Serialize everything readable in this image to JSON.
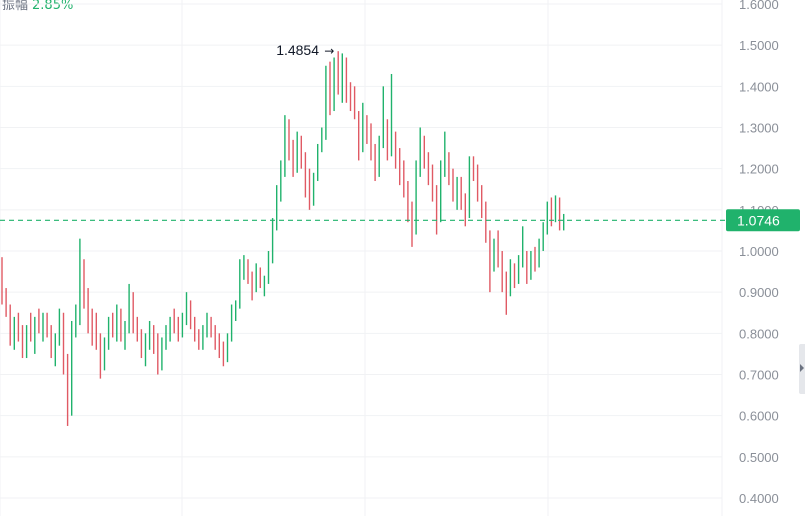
{
  "header": {
    "amplitude_label": "振幅",
    "amplitude_value": "2.85%"
  },
  "colors": {
    "up": "#20b26c",
    "down": "#e05a64",
    "grid": "#f1f2f4",
    "axis_text": "#8a8f98",
    "current_badge": "#20b26c"
  },
  "chart_data": {
    "type": "candlestick",
    "title": "",
    "xlabel": "",
    "ylabel": "",
    "ylim": [
      0.38,
      1.6
    ],
    "y_ticks": [
      "1.6000",
      "1.5000",
      "1.4000",
      "1.3000",
      "1.2000",
      "1.1000",
      "1.0000",
      "0.9000",
      "0.8000",
      "0.7000",
      "0.6000",
      "0.5000",
      "0.4000"
    ],
    "grid": true,
    "current_price": {
      "value": 1.0746,
      "label": "1.0746"
    },
    "high_annotation": {
      "value": 1.4854,
      "label": "1.4854"
    },
    "candles": [
      {
        "o": 0.91,
        "h": 0.985,
        "l": 0.87,
        "c": 0.88
      },
      {
        "o": 0.88,
        "h": 0.91,
        "l": 0.84,
        "c": 0.85
      },
      {
        "o": 0.85,
        "h": 0.87,
        "l": 0.77,
        "c": 0.79
      },
      {
        "o": 0.79,
        "h": 0.84,
        "l": 0.76,
        "c": 0.82
      },
      {
        "o": 0.82,
        "h": 0.85,
        "l": 0.78,
        "c": 0.8
      },
      {
        "o": 0.8,
        "h": 0.82,
        "l": 0.74,
        "c": 0.76
      },
      {
        "o": 0.76,
        "h": 0.82,
        "l": 0.74,
        "c": 0.81
      },
      {
        "o": 0.81,
        "h": 0.85,
        "l": 0.78,
        "c": 0.79
      },
      {
        "o": 0.79,
        "h": 0.84,
        "l": 0.75,
        "c": 0.83
      },
      {
        "o": 0.83,
        "h": 0.86,
        "l": 0.8,
        "c": 0.81
      },
      {
        "o": 0.81,
        "h": 0.85,
        "l": 0.78,
        "c": 0.84
      },
      {
        "o": 0.84,
        "h": 0.85,
        "l": 0.79,
        "c": 0.8
      },
      {
        "o": 0.8,
        "h": 0.82,
        "l": 0.74,
        "c": 0.76
      },
      {
        "o": 0.76,
        "h": 0.8,
        "l": 0.72,
        "c": 0.79
      },
      {
        "o": 0.79,
        "h": 0.86,
        "l": 0.77,
        "c": 0.84
      },
      {
        "o": 0.84,
        "h": 0.85,
        "l": 0.7,
        "c": 0.72
      },
      {
        "o": 0.72,
        "h": 0.75,
        "l": 0.575,
        "c": 0.62
      },
      {
        "o": 0.62,
        "h": 0.83,
        "l": 0.6,
        "c": 0.81
      },
      {
        "o": 0.81,
        "h": 0.87,
        "l": 0.79,
        "c": 0.84
      },
      {
        "o": 0.84,
        "h": 1.03,
        "l": 0.82,
        "c": 0.92
      },
      {
        "o": 0.92,
        "h": 0.98,
        "l": 0.86,
        "c": 0.87
      },
      {
        "o": 0.87,
        "h": 0.91,
        "l": 0.8,
        "c": 0.82
      },
      {
        "o": 0.82,
        "h": 0.86,
        "l": 0.77,
        "c": 0.8
      },
      {
        "o": 0.8,
        "h": 0.85,
        "l": 0.76,
        "c": 0.78
      },
      {
        "o": 0.78,
        "h": 0.8,
        "l": 0.69,
        "c": 0.73
      },
      {
        "o": 0.73,
        "h": 0.79,
        "l": 0.71,
        "c": 0.77
      },
      {
        "o": 0.77,
        "h": 0.84,
        "l": 0.76,
        "c": 0.82
      },
      {
        "o": 0.82,
        "h": 0.85,
        "l": 0.79,
        "c": 0.8
      },
      {
        "o": 0.8,
        "h": 0.87,
        "l": 0.78,
        "c": 0.85
      },
      {
        "o": 0.85,
        "h": 0.86,
        "l": 0.78,
        "c": 0.79
      },
      {
        "o": 0.79,
        "h": 0.83,
        "l": 0.76,
        "c": 0.81
      },
      {
        "o": 0.81,
        "h": 0.92,
        "l": 0.8,
        "c": 0.88
      },
      {
        "o": 0.88,
        "h": 0.9,
        "l": 0.8,
        "c": 0.82
      },
      {
        "o": 0.82,
        "h": 0.84,
        "l": 0.78,
        "c": 0.79
      },
      {
        "o": 0.79,
        "h": 0.81,
        "l": 0.74,
        "c": 0.76
      },
      {
        "o": 0.76,
        "h": 0.8,
        "l": 0.72,
        "c": 0.78
      },
      {
        "o": 0.78,
        "h": 0.83,
        "l": 0.76,
        "c": 0.8
      },
      {
        "o": 0.8,
        "h": 0.82,
        "l": 0.75,
        "c": 0.77
      },
      {
        "o": 0.77,
        "h": 0.8,
        "l": 0.7,
        "c": 0.72
      },
      {
        "o": 0.72,
        "h": 0.79,
        "l": 0.71,
        "c": 0.78
      },
      {
        "o": 0.78,
        "h": 0.82,
        "l": 0.76,
        "c": 0.8
      },
      {
        "o": 0.8,
        "h": 0.84,
        "l": 0.78,
        "c": 0.83
      },
      {
        "o": 0.83,
        "h": 0.86,
        "l": 0.8,
        "c": 0.82
      },
      {
        "o": 0.82,
        "h": 0.84,
        "l": 0.78,
        "c": 0.8
      },
      {
        "o": 0.8,
        "h": 0.85,
        "l": 0.79,
        "c": 0.84
      },
      {
        "o": 0.84,
        "h": 0.9,
        "l": 0.82,
        "c": 0.86
      },
      {
        "o": 0.86,
        "h": 0.88,
        "l": 0.81,
        "c": 0.82
      },
      {
        "o": 0.82,
        "h": 0.84,
        "l": 0.78,
        "c": 0.79
      },
      {
        "o": 0.79,
        "h": 0.81,
        "l": 0.76,
        "c": 0.77
      },
      {
        "o": 0.77,
        "h": 0.82,
        "l": 0.76,
        "c": 0.81
      },
      {
        "o": 0.81,
        "h": 0.85,
        "l": 0.79,
        "c": 0.83
      },
      {
        "o": 0.83,
        "h": 0.84,
        "l": 0.79,
        "c": 0.8
      },
      {
        "o": 0.8,
        "h": 0.82,
        "l": 0.76,
        "c": 0.78
      },
      {
        "o": 0.78,
        "h": 0.8,
        "l": 0.74,
        "c": 0.76
      },
      {
        "o": 0.76,
        "h": 0.78,
        "l": 0.72,
        "c": 0.74
      },
      {
        "o": 0.74,
        "h": 0.8,
        "l": 0.73,
        "c": 0.79
      },
      {
        "o": 0.79,
        "h": 0.87,
        "l": 0.78,
        "c": 0.85
      },
      {
        "o": 0.85,
        "h": 0.88,
        "l": 0.83,
        "c": 0.87
      },
      {
        "o": 0.87,
        "h": 0.98,
        "l": 0.86,
        "c": 0.95
      },
      {
        "o": 0.95,
        "h": 0.99,
        "l": 0.93,
        "c": 0.96
      },
      {
        "o": 0.96,
        "h": 0.98,
        "l": 0.92,
        "c": 0.93
      },
      {
        "o": 0.93,
        "h": 0.95,
        "l": 0.88,
        "c": 0.91
      },
      {
        "o": 0.91,
        "h": 0.97,
        "l": 0.9,
        "c": 0.95
      },
      {
        "o": 0.95,
        "h": 0.96,
        "l": 0.91,
        "c": 0.92
      },
      {
        "o": 0.92,
        "h": 0.94,
        "l": 0.89,
        "c": 0.93
      },
      {
        "o": 0.93,
        "h": 1.0,
        "l": 0.92,
        "c": 0.98
      },
      {
        "o": 0.98,
        "h": 1.08,
        "l": 0.97,
        "c": 1.06
      },
      {
        "o": 1.06,
        "h": 1.16,
        "l": 1.05,
        "c": 1.14
      },
      {
        "o": 1.14,
        "h": 1.22,
        "l": 1.12,
        "c": 1.2
      },
      {
        "o": 1.2,
        "h": 1.33,
        "l": 1.18,
        "c": 1.3
      },
      {
        "o": 1.3,
        "h": 1.32,
        "l": 1.22,
        "c": 1.24
      },
      {
        "o": 1.24,
        "h": 1.27,
        "l": 1.18,
        "c": 1.2
      },
      {
        "o": 1.2,
        "h": 1.29,
        "l": 1.19,
        "c": 1.27
      },
      {
        "o": 1.27,
        "h": 1.28,
        "l": 1.2,
        "c": 1.21
      },
      {
        "o": 1.21,
        "h": 1.24,
        "l": 1.13,
        "c": 1.16
      },
      {
        "o": 1.16,
        "h": 1.2,
        "l": 1.1,
        "c": 1.12
      },
      {
        "o": 1.12,
        "h": 1.19,
        "l": 1.11,
        "c": 1.18
      },
      {
        "o": 1.18,
        "h": 1.26,
        "l": 1.17,
        "c": 1.25
      },
      {
        "o": 1.25,
        "h": 1.3,
        "l": 1.24,
        "c": 1.28
      },
      {
        "o": 1.28,
        "h": 1.45,
        "l": 1.27,
        "c": 1.4
      },
      {
        "o": 1.4,
        "h": 1.46,
        "l": 1.33,
        "c": 1.35
      },
      {
        "o": 1.35,
        "h": 1.47,
        "l": 1.34,
        "c": 1.42
      },
      {
        "o": 1.42,
        "h": 1.4854,
        "l": 1.38,
        "c": 1.4
      },
      {
        "o": 1.4,
        "h": 1.48,
        "l": 1.36,
        "c": 1.43
      },
      {
        "o": 1.43,
        "h": 1.47,
        "l": 1.36,
        "c": 1.38
      },
      {
        "o": 1.38,
        "h": 1.41,
        "l": 1.34,
        "c": 1.36
      },
      {
        "o": 1.36,
        "h": 1.4,
        "l": 1.32,
        "c": 1.33
      },
      {
        "o": 1.33,
        "h": 1.34,
        "l": 1.22,
        "c": 1.25
      },
      {
        "o": 1.25,
        "h": 1.36,
        "l": 1.24,
        "c": 1.32
      },
      {
        "o": 1.32,
        "h": 1.33,
        "l": 1.26,
        "c": 1.28
      },
      {
        "o": 1.28,
        "h": 1.31,
        "l": 1.22,
        "c": 1.24
      },
      {
        "o": 1.24,
        "h": 1.26,
        "l": 1.17,
        "c": 1.19
      },
      {
        "o": 1.19,
        "h": 1.28,
        "l": 1.18,
        "c": 1.26
      },
      {
        "o": 1.26,
        "h": 1.4,
        "l": 1.25,
        "c": 1.3
      },
      {
        "o": 1.3,
        "h": 1.32,
        "l": 1.22,
        "c": 1.24
      },
      {
        "o": 1.24,
        "h": 1.43,
        "l": 1.23,
        "c": 1.28
      },
      {
        "o": 1.28,
        "h": 1.29,
        "l": 1.2,
        "c": 1.22
      },
      {
        "o": 1.22,
        "h": 1.25,
        "l": 1.16,
        "c": 1.18
      },
      {
        "o": 1.18,
        "h": 1.22,
        "l": 1.13,
        "c": 1.15
      },
      {
        "o": 1.15,
        "h": 1.17,
        "l": 1.07,
        "c": 1.09
      },
      {
        "o": 1.09,
        "h": 1.12,
        "l": 1.01,
        "c": 1.05
      },
      {
        "o": 1.05,
        "h": 1.22,
        "l": 1.04,
        "c": 1.2
      },
      {
        "o": 1.2,
        "h": 1.3,
        "l": 1.18,
        "c": 1.24
      },
      {
        "o": 1.24,
        "h": 1.28,
        "l": 1.2,
        "c": 1.22
      },
      {
        "o": 1.22,
        "h": 1.24,
        "l": 1.16,
        "c": 1.18
      },
      {
        "o": 1.18,
        "h": 1.21,
        "l": 1.12,
        "c": 1.14
      },
      {
        "o": 1.14,
        "h": 1.16,
        "l": 1.04,
        "c": 1.08
      },
      {
        "o": 1.08,
        "h": 1.22,
        "l": 1.07,
        "c": 1.2
      },
      {
        "o": 1.2,
        "h": 1.29,
        "l": 1.18,
        "c": 1.22
      },
      {
        "o": 1.22,
        "h": 1.24,
        "l": 1.16,
        "c": 1.18
      },
      {
        "o": 1.18,
        "h": 1.2,
        "l": 1.12,
        "c": 1.14
      },
      {
        "o": 1.14,
        "h": 1.18,
        "l": 1.1,
        "c": 1.16
      },
      {
        "o": 1.16,
        "h": 1.18,
        "l": 1.1,
        "c": 1.11
      },
      {
        "o": 1.11,
        "h": 1.14,
        "l": 1.06,
        "c": 1.09
      },
      {
        "o": 1.09,
        "h": 1.23,
        "l": 1.08,
        "c": 1.22
      },
      {
        "o": 1.22,
        "h": 1.23,
        "l": 1.17,
        "c": 1.19
      },
      {
        "o": 1.19,
        "h": 1.21,
        "l": 1.12,
        "c": 1.14
      },
      {
        "o": 1.14,
        "h": 1.16,
        "l": 1.08,
        "c": 1.1
      },
      {
        "o": 1.1,
        "h": 1.12,
        "l": 1.02,
        "c": 1.03
      },
      {
        "o": 1.03,
        "h": 1.05,
        "l": 0.9,
        "c": 0.96
      },
      {
        "o": 0.96,
        "h": 1.03,
        "l": 0.95,
        "c": 1.01
      },
      {
        "o": 1.01,
        "h": 1.05,
        "l": 0.96,
        "c": 0.98
      },
      {
        "o": 0.98,
        "h": 1.0,
        "l": 0.9,
        "c": 0.92
      },
      {
        "o": 0.92,
        "h": 0.95,
        "l": 0.845,
        "c": 0.9
      },
      {
        "o": 0.9,
        "h": 0.98,
        "l": 0.89,
        "c": 0.96
      },
      {
        "o": 0.96,
        "h": 0.97,
        "l": 0.91,
        "c": 0.93
      },
      {
        "o": 0.93,
        "h": 0.99,
        "l": 0.92,
        "c": 0.97
      },
      {
        "o": 0.97,
        "h": 1.06,
        "l": 0.96,
        "c": 0.99
      },
      {
        "o": 0.99,
        "h": 1.0,
        "l": 0.92,
        "c": 0.94
      },
      {
        "o": 0.94,
        "h": 1.0,
        "l": 0.93,
        "c": 0.98
      },
      {
        "o": 0.98,
        "h": 1.01,
        "l": 0.95,
        "c": 0.97
      },
      {
        "o": 0.97,
        "h": 1.03,
        "l": 0.96,
        "c": 1.01
      },
      {
        "o": 1.01,
        "h": 1.07,
        "l": 1.0,
        "c": 1.05
      },
      {
        "o": 1.05,
        "h": 1.12,
        "l": 1.04,
        "c": 1.1
      },
      {
        "o": 1.1,
        "h": 1.13,
        "l": 1.06,
        "c": 1.08
      },
      {
        "o": 1.08,
        "h": 1.135,
        "l": 1.07,
        "c": 1.12
      },
      {
        "o": 1.12,
        "h": 1.13,
        "l": 1.05,
        "c": 1.07
      },
      {
        "o": 1.07,
        "h": 1.09,
        "l": 1.05,
        "c": 1.0746
      }
    ]
  }
}
